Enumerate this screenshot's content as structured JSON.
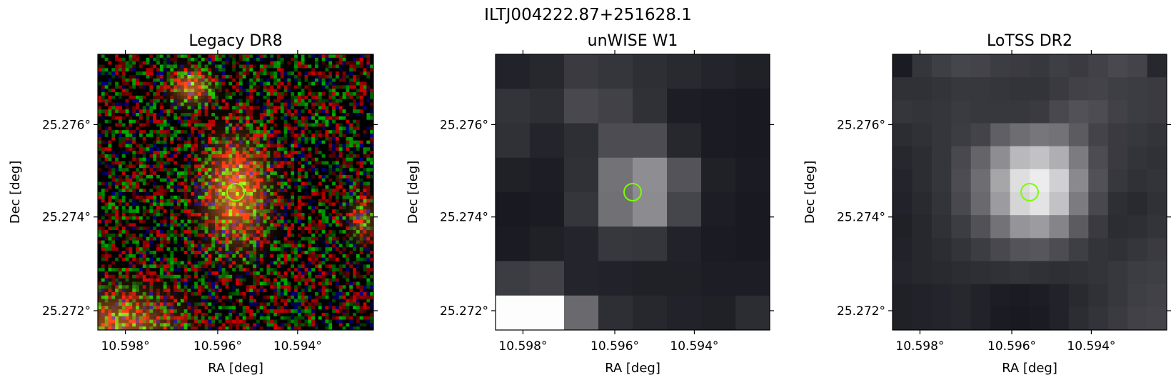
{
  "figure": {
    "title": "ILTJ004222.87+251628.1"
  },
  "chart_data": [
    {
      "type": "heatmap",
      "title": "Legacy DR8",
      "xlabel": "RA [deg]",
      "ylabel": "Dec [deg]",
      "x_ticks": [
        "10.598°",
        "10.596°",
        "10.594°"
      ],
      "y_ticks": [
        "25.276°",
        "25.274°",
        "25.272°"
      ],
      "image_kind": "rgb-noise",
      "marker": {
        "shape": "circle",
        "color": "#7cfc00"
      }
    },
    {
      "type": "heatmap",
      "title": "unWISE W1",
      "xlabel": "RA [deg]",
      "ylabel": "Dec [deg]",
      "x_ticks": [
        "10.598°",
        "10.596°",
        "10.594°"
      ],
      "y_ticks": [
        "25.276°",
        "25.274°",
        "25.272°"
      ],
      "image_kind": "grayscale",
      "grid": [
        [
          0.06,
          0.08,
          0.16,
          0.14,
          0.11,
          0.09,
          0.07,
          0.05
        ],
        [
          0.13,
          0.11,
          0.22,
          0.19,
          0.12,
          0.04,
          0.03,
          0.02
        ],
        [
          0.12,
          0.07,
          0.11,
          0.24,
          0.24,
          0.08,
          0.03,
          0.02
        ],
        [
          0.05,
          0.04,
          0.12,
          0.4,
          0.52,
          0.27,
          0.05,
          0.03
        ],
        [
          0.02,
          0.03,
          0.14,
          0.39,
          0.51,
          0.21,
          0.04,
          0.02
        ],
        [
          0.03,
          0.05,
          0.07,
          0.15,
          0.14,
          0.06,
          0.03,
          0.02
        ],
        [
          0.17,
          0.19,
          0.07,
          0.06,
          0.05,
          0.05,
          0.04,
          0.04
        ],
        [
          0.99,
          0.99,
          0.36,
          0.11,
          0.08,
          0.06,
          0.05,
          0.1
        ]
      ],
      "marker": {
        "shape": "circle",
        "color": "#7cfc00"
      }
    },
    {
      "type": "heatmap",
      "title": "LoTSS DR2",
      "xlabel": "RA [deg]",
      "ylabel": "Dec [deg]",
      "x_ticks": [
        "10.598°",
        "10.596°",
        "10.594°"
      ],
      "y_ticks": [
        "25.276°",
        "25.274°",
        "25.272°"
      ],
      "image_kind": "grayscale",
      "grid": [
        [
          0.03,
          0.14,
          0.18,
          0.21,
          0.2,
          0.17,
          0.16,
          0.15,
          0.18,
          0.16,
          0.19,
          0.22,
          0.2,
          0.08
        ],
        [
          0.12,
          0.12,
          0.13,
          0.15,
          0.15,
          0.14,
          0.13,
          0.13,
          0.16,
          0.19,
          0.2,
          0.18,
          0.17,
          0.16
        ],
        [
          0.14,
          0.13,
          0.14,
          0.16,
          0.15,
          0.15,
          0.15,
          0.16,
          0.22,
          0.26,
          0.24,
          0.19,
          0.17,
          0.16
        ],
        [
          0.1,
          0.12,
          0.14,
          0.17,
          0.2,
          0.32,
          0.38,
          0.42,
          0.4,
          0.3,
          0.2,
          0.16,
          0.15,
          0.13
        ],
        [
          0.08,
          0.1,
          0.14,
          0.22,
          0.34,
          0.52,
          0.7,
          0.74,
          0.66,
          0.44,
          0.24,
          0.16,
          0.13,
          0.12
        ],
        [
          0.07,
          0.1,
          0.14,
          0.24,
          0.38,
          0.62,
          0.86,
          0.92,
          0.8,
          0.5,
          0.26,
          0.15,
          0.12,
          0.13
        ],
        [
          0.06,
          0.09,
          0.13,
          0.22,
          0.36,
          0.58,
          0.82,
          0.88,
          0.74,
          0.44,
          0.22,
          0.11,
          0.09,
          0.12
        ],
        [
          0.05,
          0.08,
          0.12,
          0.17,
          0.26,
          0.4,
          0.55,
          0.58,
          0.48,
          0.3,
          0.16,
          0.1,
          0.11,
          0.13
        ],
        [
          0.06,
          0.08,
          0.1,
          0.13,
          0.17,
          0.22,
          0.27,
          0.28,
          0.24,
          0.18,
          0.13,
          0.12,
          0.14,
          0.16
        ],
        [
          0.07,
          0.08,
          0.09,
          0.1,
          0.11,
          0.12,
          0.13,
          0.12,
          0.11,
          0.12,
          0.13,
          0.15,
          0.17,
          0.18
        ],
        [
          0.05,
          0.06,
          0.07,
          0.08,
          0.06,
          0.04,
          0.03,
          0.04,
          0.06,
          0.09,
          0.12,
          0.15,
          0.18,
          0.19
        ],
        [
          0.05,
          0.06,
          0.07,
          0.08,
          0.06,
          0.03,
          0.02,
          0.03,
          0.06,
          0.1,
          0.13,
          0.16,
          0.19,
          0.2
        ]
      ],
      "marker": {
        "shape": "circle",
        "color": "#7cfc00"
      }
    }
  ]
}
